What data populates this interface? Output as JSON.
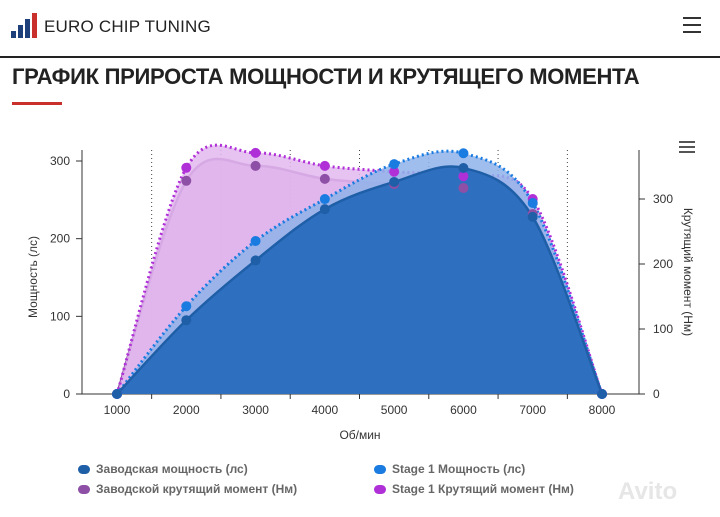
{
  "header": {
    "brand": "EURO CHIP TUNING"
  },
  "page": {
    "title": "ГРАФИК ПРИРОСТА МОЩНОСТИ И КРУТЯЩЕГО МОМЕНТА"
  },
  "watermark": "Avito",
  "chart_data": {
    "type": "area",
    "xlabel": "Об/мин",
    "ylabel": "Мощность (лс)",
    "y2label": "Крутящий момент (Нм)",
    "x": [
      1000,
      2000,
      3000,
      4000,
      5000,
      6000,
      7000,
      8000
    ],
    "xticks": [
      "1000",
      "2000",
      "3000",
      "4000",
      "5000",
      "6000",
      "7000",
      "8000"
    ],
    "ylim": [
      0,
      300
    ],
    "yticks": [
      "0",
      "100",
      "200",
      "300"
    ],
    "y2lim": [
      0,
      360
    ],
    "y2ticks": [
      "0",
      "100",
      "200",
      "300"
    ],
    "grid": "vertical dotted",
    "legend_position": "bottom",
    "series": [
      {
        "name": "Заводской крутящий момент (Нм)",
        "axis": "right",
        "color": "#8e4fa6",
        "fill": "#c49ad3",
        "dashed": false,
        "values": [
          0,
          328,
          351,
          331,
          323,
          317,
          277,
          0
        ]
      },
      {
        "name": "Stage 1 Крутящий момент (Нм)",
        "axis": "right",
        "color": "#b030d8",
        "fill": "#e3b8ef",
        "dashed": true,
        "values": [
          0,
          348,
          371,
          351,
          342,
          335,
          300,
          0
        ]
      },
      {
        "name": "Stage 1 Мощность (лс)",
        "axis": "left",
        "color": "#1a7be0",
        "fill": "#8fb3ea",
        "dashed": true,
        "values": [
          0,
          113,
          197,
          251,
          296,
          310,
          246,
          0
        ]
      },
      {
        "name": "Заводская мощность (лс)",
        "axis": "left",
        "color": "#1e5fa8",
        "fill": "#2f6fbf",
        "dashed": false,
        "values": [
          0,
          95,
          172,
          238,
          273,
          291,
          228,
          0
        ]
      }
    ]
  }
}
